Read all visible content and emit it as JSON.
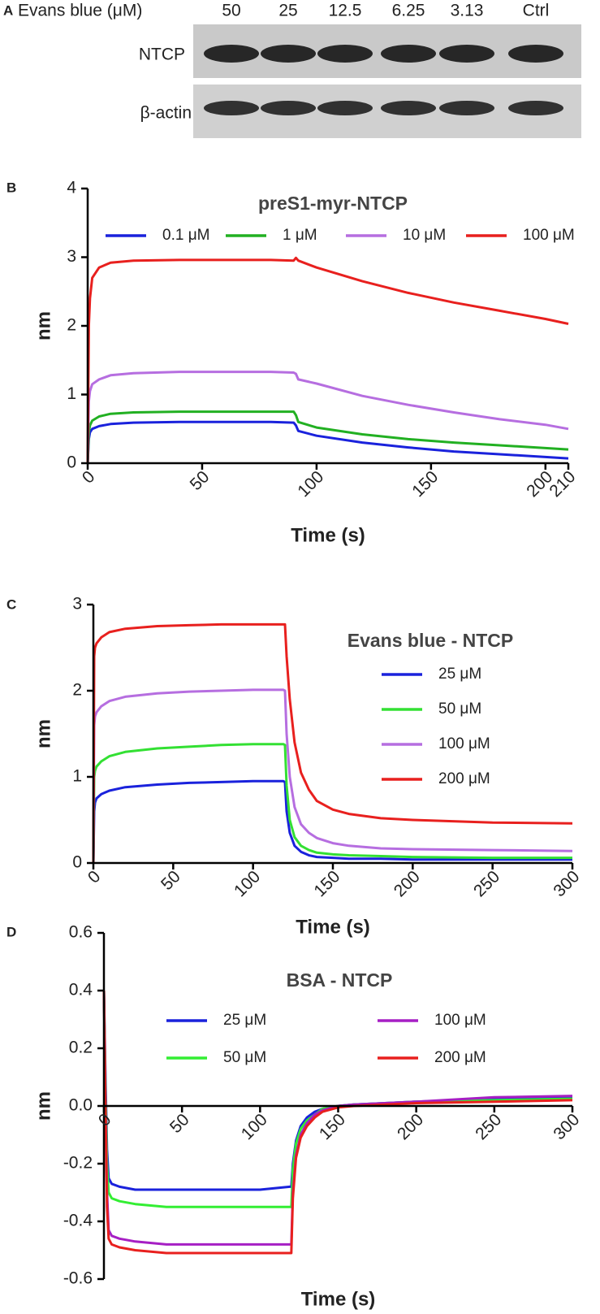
{
  "blot": {
    "panel_label": "A",
    "header": "Evans blue (μM)",
    "lanes": [
      "50",
      "25",
      "12.5",
      "6.25",
      "3.13",
      "Ctrl"
    ],
    "rows": [
      "NTCP",
      "β-actin"
    ]
  },
  "chart_data": [
    {
      "type": "line",
      "panel_label": "B",
      "title": "preS1-myr-NTCP",
      "x_label": "Time (s)",
      "y_label": "nm",
      "xlim": [
        0,
        210
      ],
      "xticks": [
        0,
        50,
        100,
        150,
        200,
        210
      ],
      "ylim": [
        0,
        4
      ],
      "yticks": [
        0,
        1,
        2,
        3,
        4
      ],
      "x": [
        0,
        0.5,
        1,
        2,
        5,
        10,
        20,
        40,
        60,
        80,
        90,
        91,
        92,
        100,
        120,
        140,
        160,
        180,
        200,
        210
      ],
      "series": [
        {
          "name": "0.1 μM",
          "color": "#1a22dc",
          "values": [
            0,
            0.35,
            0.45,
            0.5,
            0.54,
            0.57,
            0.59,
            0.6,
            0.6,
            0.6,
            0.59,
            0.55,
            0.47,
            0.4,
            0.3,
            0.23,
            0.17,
            0.13,
            0.09,
            0.07
          ]
        },
        {
          "name": "1 μM",
          "color": "#22b022",
          "values": [
            0,
            0.45,
            0.55,
            0.62,
            0.68,
            0.72,
            0.74,
            0.75,
            0.75,
            0.75,
            0.75,
            0.7,
            0.6,
            0.52,
            0.42,
            0.35,
            0.3,
            0.26,
            0.22,
            0.2
          ]
        },
        {
          "name": "10 μM",
          "color": "#b66ee0",
          "values": [
            0,
            0.9,
            1.05,
            1.15,
            1.22,
            1.28,
            1.31,
            1.33,
            1.33,
            1.33,
            1.32,
            1.3,
            1.22,
            1.16,
            0.98,
            0.85,
            0.74,
            0.64,
            0.56,
            0.5
          ]
        },
        {
          "name": "100 μM",
          "color": "#e8201e",
          "values": [
            0,
            2.0,
            2.4,
            2.7,
            2.85,
            2.92,
            2.95,
            2.96,
            2.96,
            2.96,
            2.95,
            2.99,
            2.95,
            2.85,
            2.65,
            2.48,
            2.34,
            2.22,
            2.1,
            2.03
          ]
        }
      ]
    },
    {
      "type": "line",
      "panel_label": "C",
      "title": "Evans blue - NTCP",
      "x_label": "Time (s)",
      "y_label": "nm",
      "xlim": [
        0,
        300
      ],
      "xticks": [
        0,
        50,
        100,
        150,
        200,
        250,
        300
      ],
      "ylim": [
        0,
        3
      ],
      "yticks": [
        0,
        1,
        2,
        3
      ],
      "x": [
        0,
        0.5,
        1,
        2,
        5,
        10,
        20,
        40,
        60,
        80,
        100,
        119,
        120,
        121,
        123,
        126,
        130,
        135,
        140,
        150,
        160,
        180,
        200,
        250,
        300
      ],
      "series": [
        {
          "name": "25 μM",
          "color": "#1a22dc",
          "values": [
            0,
            0.6,
            0.7,
            0.75,
            0.8,
            0.84,
            0.88,
            0.91,
            0.93,
            0.94,
            0.95,
            0.95,
            0.94,
            0.6,
            0.35,
            0.2,
            0.13,
            0.09,
            0.07,
            0.06,
            0.05,
            0.05,
            0.04,
            0.04,
            0.04
          ]
        },
        {
          "name": "50 μM",
          "color": "#33e033",
          "values": [
            0,
            1.0,
            1.07,
            1.12,
            1.18,
            1.24,
            1.29,
            1.33,
            1.35,
            1.37,
            1.38,
            1.38,
            1.37,
            0.9,
            0.5,
            0.3,
            0.2,
            0.15,
            0.12,
            0.1,
            0.09,
            0.08,
            0.07,
            0.06,
            0.06
          ]
        },
        {
          "name": "100 μM",
          "color": "#b66ee0",
          "values": [
            0,
            1.6,
            1.7,
            1.75,
            1.82,
            1.88,
            1.93,
            1.97,
            1.99,
            2.0,
            2.01,
            2.01,
            2.0,
            1.5,
            1.0,
            0.65,
            0.45,
            0.35,
            0.29,
            0.23,
            0.2,
            0.17,
            0.16,
            0.15,
            0.14
          ]
        },
        {
          "name": "200 μM",
          "color": "#e8201e",
          "values": [
            0,
            2.4,
            2.5,
            2.55,
            2.62,
            2.68,
            2.72,
            2.75,
            2.76,
            2.77,
            2.77,
            2.77,
            2.77,
            2.4,
            1.9,
            1.4,
            1.05,
            0.85,
            0.72,
            0.62,
            0.57,
            0.52,
            0.5,
            0.47,
            0.46
          ]
        }
      ]
    },
    {
      "type": "line",
      "panel_label": "D",
      "title": "BSA - NTCP",
      "x_label": "Time (s)",
      "y_label": "nm",
      "xlim": [
        0,
        300
      ],
      "xticks": [
        0,
        50,
        100,
        150,
        200,
        250,
        300
      ],
      "ylim": [
        -0.6,
        0.6
      ],
      "yticks": [
        -0.6,
        -0.4,
        -0.2,
        {
          "value": 0,
          "label": "0.0"
        },
        0.2,
        0.4,
        0.6
      ],
      "x": [
        0,
        1,
        2,
        3,
        5,
        10,
        20,
        40,
        60,
        80,
        100,
        119,
        120,
        121,
        123,
        126,
        130,
        135,
        140,
        150,
        160,
        180,
        200,
        250,
        300
      ],
      "series": [
        {
          "name": "25 μM",
          "color": "#1a22dc",
          "values": [
            0.4,
            0.1,
            -0.15,
            -0.25,
            -0.27,
            -0.28,
            -0.29,
            -0.29,
            -0.29,
            -0.29,
            -0.29,
            -0.28,
            -0.28,
            -0.2,
            -0.12,
            -0.07,
            -0.04,
            -0.02,
            -0.01,
            0.0,
            0.005,
            0.01,
            0.015,
            0.025,
            0.03
          ]
        },
        {
          "name": "50 μM",
          "color": "#33ee33",
          "values": [
            0.4,
            0.05,
            -0.2,
            -0.3,
            -0.32,
            -0.33,
            -0.34,
            -0.35,
            -0.35,
            -0.35,
            -0.35,
            -0.35,
            -0.35,
            -0.22,
            -0.13,
            -0.08,
            -0.05,
            -0.03,
            -0.01,
            0.0,
            0.005,
            0.01,
            0.015,
            0.02,
            0.025
          ]
        },
        {
          "name": "100 μM",
          "color": "#a61fc4",
          "values": [
            0.4,
            0,
            -0.3,
            -0.43,
            -0.45,
            -0.46,
            -0.47,
            -0.48,
            -0.48,
            -0.48,
            -0.48,
            -0.48,
            -0.48,
            -0.3,
            -0.17,
            -0.1,
            -0.06,
            -0.03,
            -0.015,
            0.0,
            0.005,
            0.01,
            0.015,
            0.03,
            0.035
          ]
        },
        {
          "name": "200 μM",
          "color": "#e8201e",
          "values": [
            0.4,
            0,
            -0.35,
            -0.46,
            -0.48,
            -0.49,
            -0.5,
            -0.51,
            -0.51,
            -0.51,
            -0.51,
            -0.51,
            -0.51,
            -0.32,
            -0.18,
            -0.11,
            -0.07,
            -0.04,
            -0.02,
            -0.005,
            0.0,
            0.005,
            0.01,
            0.015,
            0.02
          ]
        }
      ]
    }
  ]
}
